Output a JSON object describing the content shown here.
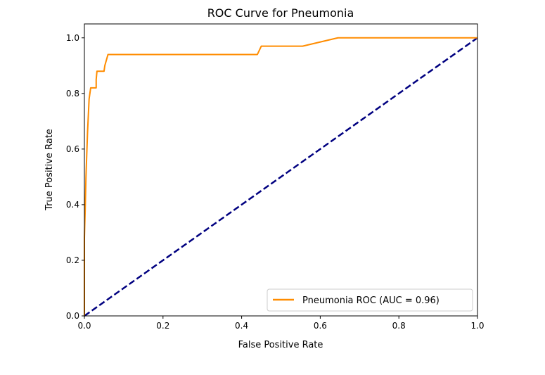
{
  "chart_data": {
    "type": "line",
    "title": "ROC Curve for Pneumonia",
    "xlabel": "False Positive Rate",
    "ylabel": "True Positive Rate",
    "xlim": [
      0.0,
      1.0
    ],
    "ylim": [
      0.0,
      1.05
    ],
    "xticks": [
      "0.0",
      "0.2",
      "0.4",
      "0.6",
      "0.8",
      "1.0"
    ],
    "yticks": [
      "0.0",
      "0.2",
      "0.4",
      "0.6",
      "0.8",
      "1.0"
    ],
    "grid": false,
    "legend_position": "lower-right",
    "series": [
      {
        "name": "Pneumonia ROC (AUC = 0.96)",
        "color": "#ff8c00",
        "style": "solid",
        "x": [
          0.0,
          0.0,
          0.002,
          0.004,
          0.006,
          0.008,
          0.01,
          0.012,
          0.014,
          0.016,
          0.02,
          0.02,
          0.03,
          0.03,
          0.032,
          0.034,
          0.05,
          0.052,
          0.054,
          0.058,
          0.06,
          0.44,
          0.445,
          0.45,
          0.555,
          0.645,
          1.0
        ],
        "y": [
          0.0,
          0.28,
          0.38,
          0.5,
          0.58,
          0.66,
          0.72,
          0.78,
          0.8,
          0.82,
          0.82,
          0.82,
          0.82,
          0.85,
          0.88,
          0.88,
          0.88,
          0.9,
          0.91,
          0.93,
          0.94,
          0.94,
          0.955,
          0.97,
          0.97,
          1.0,
          1.0
        ]
      },
      {
        "name": "",
        "color": "#000080",
        "style": "dashed",
        "x": [
          0.0,
          1.0
        ],
        "y": [
          0.0,
          1.0
        ]
      }
    ]
  }
}
